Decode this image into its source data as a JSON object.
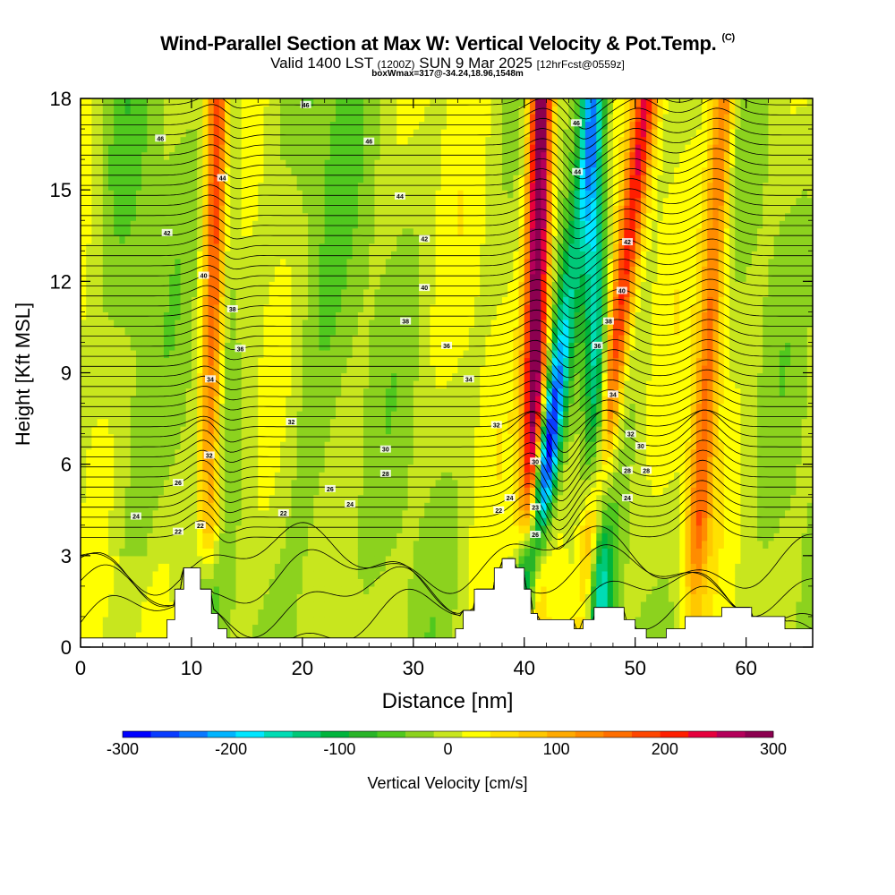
{
  "header": {
    "title": "Wind-Parallel Section at Max W: Vertical Velocity & Pot.Temp.",
    "copyright": "(C)",
    "valid_prefix": "Valid 1400 LST",
    "valid_utc": "(1200Z)",
    "valid_date": "SUN 9 Mar 2025",
    "forecast": "[12hrFcst@0559z]",
    "box_info": "boxWmax=317@-34.24,18.96,1548m"
  },
  "chart_data": {
    "type": "heatmap",
    "xlabel": "Distance [nm]",
    "ylabel": "Height [Kft MSL]",
    "xlim": [
      0,
      66
    ],
    "ylim": [
      0,
      18
    ],
    "x_ticks": [
      0,
      10,
      20,
      30,
      40,
      50,
      60
    ],
    "y_ticks": [
      0,
      3,
      6,
      9,
      12,
      15,
      18
    ],
    "colorbar": {
      "label": "Vertical Velocity [cm/s]",
      "min": -300,
      "max": 300,
      "ticks": [
        -300,
        -200,
        -100,
        0,
        100,
        200,
        300
      ],
      "colors": [
        "#0000ff",
        "#0a3cff",
        "#0a78ff",
        "#00b4ff",
        "#00e6ff",
        "#00dcb4",
        "#00c878",
        "#00b43c",
        "#28b428",
        "#50c81e",
        "#8cd21e",
        "#c8e61e",
        "#ffff00",
        "#ffe100",
        "#ffc800",
        "#ffaa00",
        "#ff8c00",
        "#ff6e00",
        "#ff4600",
        "#ff1e00",
        "#e6003c",
        "#b4005a",
        "#8c0050"
      ]
    },
    "updrafts": [
      {
        "x_base": 11.5,
        "x_top": 12.5,
        "w_max": 220
      },
      {
        "x_base": 40.5,
        "x_top": 41.5,
        "w_max": 317
      },
      {
        "x_base": 45.0,
        "x_top": 51.0,
        "w_max": 200
      },
      {
        "x_base": 55.0,
        "x_top": 58.0,
        "w_max": 150
      }
    ],
    "downdrafts": [
      {
        "x_base": 11.5,
        "x_top": 13.5,
        "w_min": -100
      },
      {
        "x_base": 39.5,
        "x_top": 46.5,
        "w_min": -300
      },
      {
        "x_base": 47.0,
        "x_top": 46.0,
        "w_min": -150
      }
    ],
    "terrain_kft": [
      [
        0,
        0.3
      ],
      [
        7.8,
        0.3
      ],
      [
        7.8,
        0.9
      ],
      [
        8.5,
        0.9
      ],
      [
        8.5,
        1.9
      ],
      [
        9.3,
        1.9
      ],
      [
        9.3,
        2.6
      ],
      [
        10.8,
        2.6
      ],
      [
        10.8,
        1.9
      ],
      [
        11.8,
        1.9
      ],
      [
        11.8,
        1.1
      ],
      [
        12.4,
        1.1
      ],
      [
        12.4,
        0.6
      ],
      [
        13.2,
        0.6
      ],
      [
        13.2,
        0.3
      ],
      [
        33.8,
        0.3
      ],
      [
        33.8,
        0.6
      ],
      [
        34.5,
        0.6
      ],
      [
        34.5,
        1.2
      ],
      [
        35.5,
        1.2
      ],
      [
        35.5,
        1.9
      ],
      [
        37.3,
        1.9
      ],
      [
        37.3,
        2.6
      ],
      [
        38.0,
        2.6
      ],
      [
        38.0,
        2.9
      ],
      [
        39.2,
        2.9
      ],
      [
        39.2,
        2.6
      ],
      [
        40.0,
        2.6
      ],
      [
        40.0,
        1.9
      ],
      [
        40.6,
        1.9
      ],
      [
        40.6,
        1.1
      ],
      [
        41.2,
        1.1
      ],
      [
        41.2,
        0.9
      ],
      [
        44.5,
        0.9
      ],
      [
        44.5,
        0.6
      ],
      [
        45.3,
        0.6
      ],
      [
        45.3,
        0.9
      ],
      [
        46.3,
        0.9
      ],
      [
        46.3,
        1.3
      ],
      [
        49.0,
        1.3
      ],
      [
        49.0,
        0.9
      ],
      [
        50.0,
        0.9
      ],
      [
        50.0,
        0.6
      ],
      [
        51.0,
        0.6
      ],
      [
        51.0,
        0.3
      ],
      [
        52.8,
        0.3
      ],
      [
        52.8,
        0.6
      ],
      [
        54.5,
        0.6
      ],
      [
        54.5,
        1.0
      ],
      [
        57.8,
        1.0
      ],
      [
        57.8,
        1.3
      ],
      [
        60.5,
        1.3
      ],
      [
        60.5,
        1.0
      ],
      [
        63.5,
        1.0
      ],
      [
        63.5,
        0.6
      ],
      [
        66,
        0.6
      ]
    ],
    "isentrope_labels": [
      {
        "x": 20.3,
        "y": 17.8,
        "text": "46"
      },
      {
        "x": 7.2,
        "y": 16.7,
        "text": "46"
      },
      {
        "x": 26.0,
        "y": 16.6,
        "text": "46"
      },
      {
        "x": 12.8,
        "y": 15.4,
        "text": "44"
      },
      {
        "x": 28.8,
        "y": 14.8,
        "text": "44"
      },
      {
        "x": 7.8,
        "y": 13.6,
        "text": "42"
      },
      {
        "x": 31.0,
        "y": 13.4,
        "text": "42"
      },
      {
        "x": 11.1,
        "y": 12.2,
        "text": "40"
      },
      {
        "x": 31.0,
        "y": 11.8,
        "text": "40"
      },
      {
        "x": 13.7,
        "y": 11.1,
        "text": "38"
      },
      {
        "x": 29.3,
        "y": 10.7,
        "text": "38"
      },
      {
        "x": 14.4,
        "y": 9.8,
        "text": "36"
      },
      {
        "x": 33.0,
        "y": 9.9,
        "text": "36"
      },
      {
        "x": 11.7,
        "y": 8.8,
        "text": "34"
      },
      {
        "x": 35.0,
        "y": 8.8,
        "text": "34"
      },
      {
        "x": 19.0,
        "y": 7.4,
        "text": "32"
      },
      {
        "x": 37.5,
        "y": 7.3,
        "text": "32"
      },
      {
        "x": 11.6,
        "y": 6.3,
        "text": "32"
      },
      {
        "x": 27.5,
        "y": 6.5,
        "text": "30"
      },
      {
        "x": 27.5,
        "y": 5.7,
        "text": "28"
      },
      {
        "x": 8.8,
        "y": 5.4,
        "text": "26"
      },
      {
        "x": 22.5,
        "y": 5.2,
        "text": "26"
      },
      {
        "x": 24.3,
        "y": 4.7,
        "text": "24"
      },
      {
        "x": 5.0,
        "y": 4.3,
        "text": "24"
      },
      {
        "x": 18.3,
        "y": 4.4,
        "text": "22"
      },
      {
        "x": 10.8,
        "y": 4.0,
        "text": "22"
      },
      {
        "x": 8.8,
        "y": 3.8,
        "text": "22"
      },
      {
        "x": 37.7,
        "y": 4.5,
        "text": "22"
      },
      {
        "x": 38.7,
        "y": 4.9,
        "text": "24"
      },
      {
        "x": 41.0,
        "y": 6.1,
        "text": "30"
      },
      {
        "x": 41.0,
        "y": 4.6,
        "text": "23"
      },
      {
        "x": 41.0,
        "y": 3.7,
        "text": "26"
      },
      {
        "x": 44.7,
        "y": 17.2,
        "text": "46"
      },
      {
        "x": 44.8,
        "y": 15.6,
        "text": "44"
      },
      {
        "x": 49.3,
        "y": 13.3,
        "text": "42"
      },
      {
        "x": 48.8,
        "y": 11.7,
        "text": "40"
      },
      {
        "x": 47.6,
        "y": 10.7,
        "text": "38"
      },
      {
        "x": 46.6,
        "y": 9.9,
        "text": "36"
      },
      {
        "x": 48.0,
        "y": 8.3,
        "text": "34"
      },
      {
        "x": 49.6,
        "y": 7.0,
        "text": "32"
      },
      {
        "x": 50.5,
        "y": 6.6,
        "text": "30"
      },
      {
        "x": 49.3,
        "y": 5.8,
        "text": "28"
      },
      {
        "x": 51.0,
        "y": 5.8,
        "text": "28"
      },
      {
        "x": 49.3,
        "y": 4.9,
        "text": "24"
      }
    ]
  }
}
